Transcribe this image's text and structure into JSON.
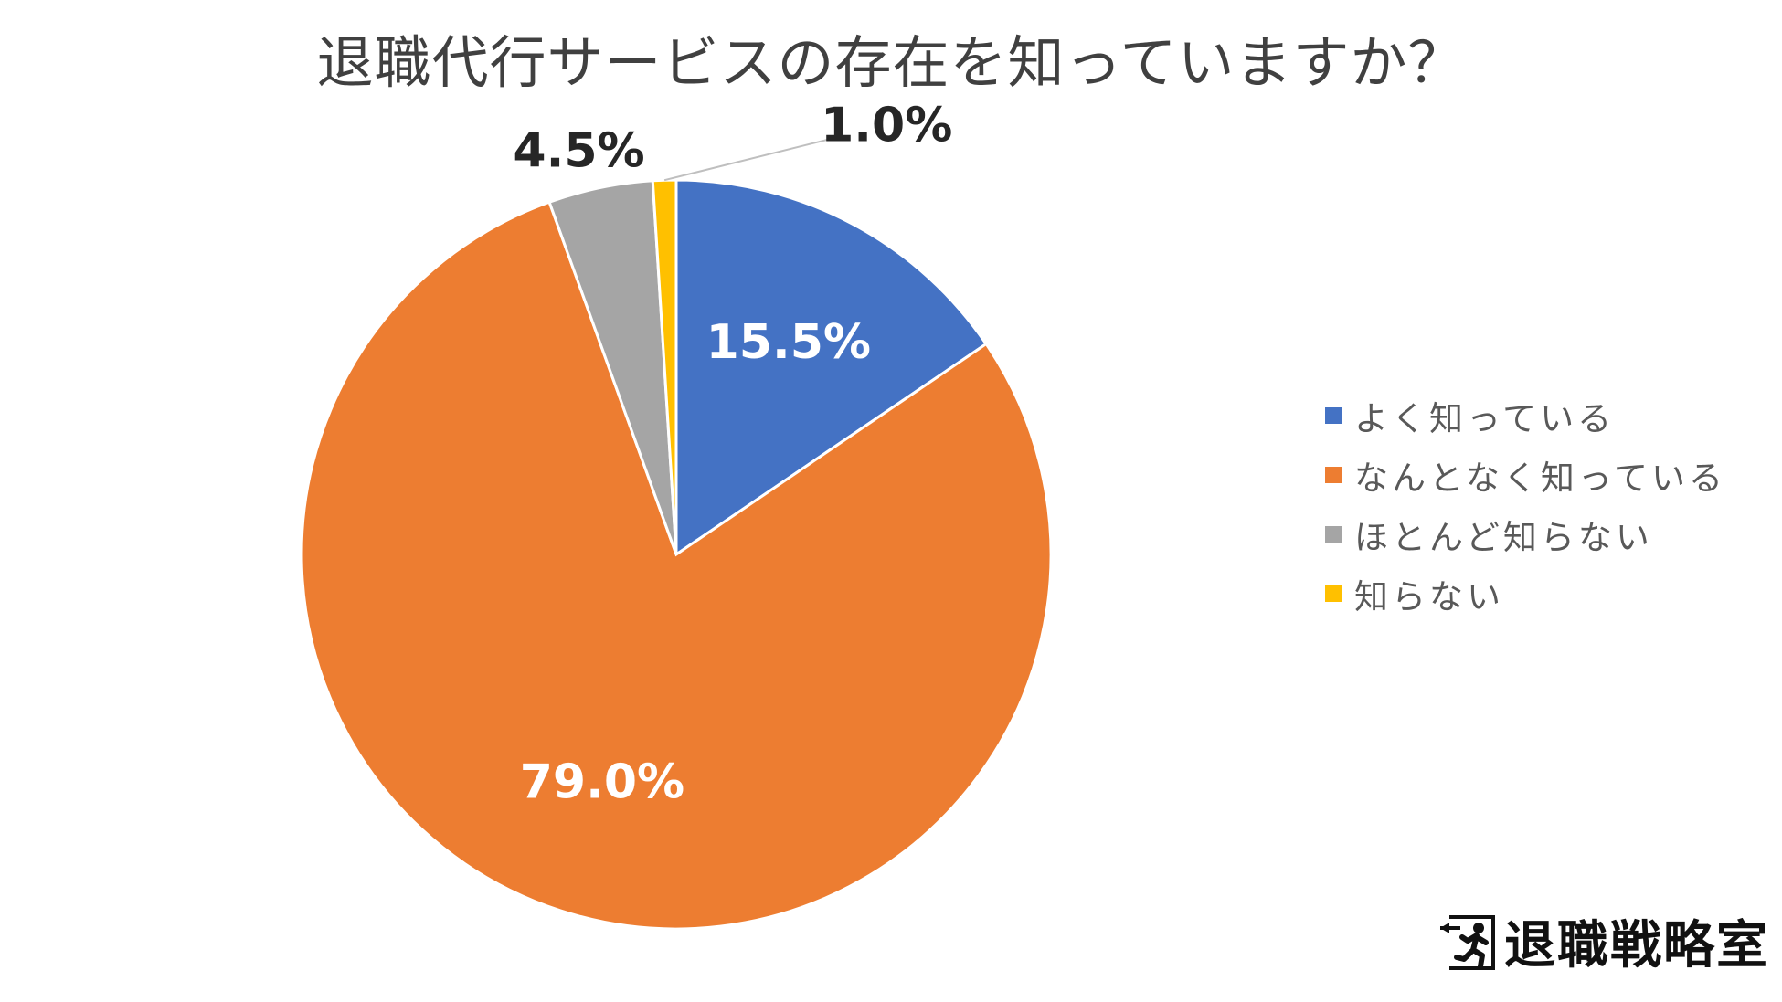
{
  "chart_data": {
    "type": "pie",
    "title": "退職代行サービスの存在を知っていますか？",
    "categories": [
      "よく知っている",
      "なんとなく知っている",
      "ほとんど知らない",
      "知らない"
    ],
    "values": [
      15.5,
      79.0,
      4.5,
      1.0
    ],
    "data_labels": [
      "15.5%",
      "79.0%",
      "4.5%",
      "1.0%"
    ],
    "colors": [
      "#4472C4",
      "#ED7D31",
      "#A5A5A5",
      "#FFC000"
    ],
    "legend_position": "right",
    "start_angle_deg": 0,
    "direction": "clockwise"
  },
  "brand": {
    "name": "退職戦略室",
    "icon": "exit-runner-icon"
  }
}
